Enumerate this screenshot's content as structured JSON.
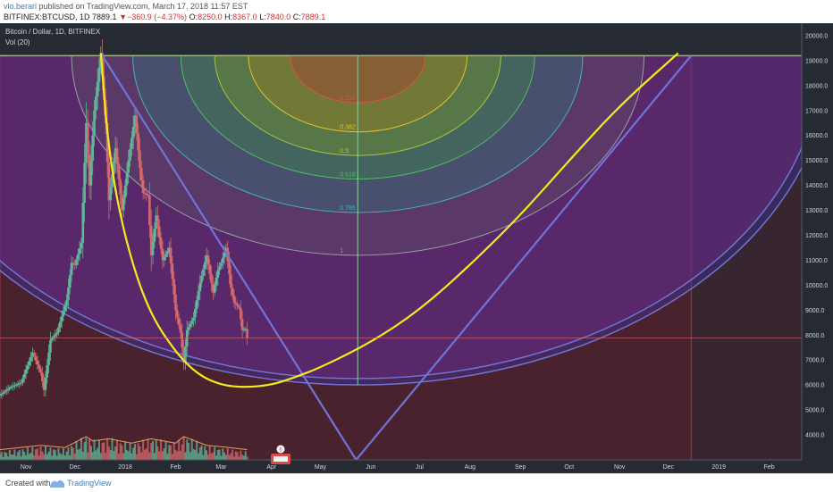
{
  "header": {
    "author": "vlo.berari",
    "published": "published on TradingView.com, March 17, 2018 11:57 EST",
    "symbol": "BITFINEX:BTCUSD, 1D",
    "last": "7889.1",
    "change": "−360.9 (−4.37%)",
    "o_label": "O:",
    "o_value": "8250.0",
    "h_label": "H:",
    "h_value": "8367.0",
    "l_label": "L:",
    "l_value": "7840.0",
    "c_label": "C:",
    "c_value": "7889.1"
  },
  "legend": {
    "title": "Bitcoin / Dollar, 1D, BITFINEX",
    "vol": "Vol (20)"
  },
  "footer": {
    "created": "Created with",
    "brand": "TradingView"
  },
  "colors": {
    "background": "#2a1e28",
    "axis_text": "#cfd3dc",
    "up": "#5fb89a",
    "down": "#d46a6a",
    "trend": "#6f74d8",
    "cup": "#f2ec1a",
    "fib_fill": "#6a2878"
  },
  "chart_data": [
    {
      "type": "candlestick",
      "title": "Bitcoin / Dollar, 1D, BITFINEX",
      "y_axis": {
        "side": "right",
        "range": [
          3000,
          20500
        ],
        "ticks": [
          4000,
          5000,
          6000,
          7000,
          8000,
          9000,
          10000,
          11000,
          12000,
          13000,
          14000,
          15000,
          16000,
          17000,
          18000,
          19000,
          20000
        ],
        "tick_labels": [
          "4000.0",
          "5000.0",
          "6000.0",
          "7000.0",
          "8000.0",
          "9000.0",
          "10000.0",
          "11000.0",
          "12000.0",
          "13000.0",
          "14000.0",
          "15000.0",
          "16000.0",
          "17000.0",
          "18000.0",
          "19000.0",
          "20000.0"
        ]
      },
      "x_axis": {
        "range": [
          "2017-10-16",
          "2019-02-21"
        ],
        "ticks": [
          "2017-11-01",
          "2017-12-01",
          "2018-01-01",
          "2018-02-01",
          "2018-03-01",
          "2018-04-01",
          "2018-05-01",
          "2018-06-01",
          "2018-07-01",
          "2018-08-01",
          "2018-09-01",
          "2018-10-01",
          "2018-11-01",
          "2018-12-01",
          "2019-01-01",
          "2019-02-01"
        ],
        "tick_labels": [
          "Nov",
          "Dec",
          "2018",
          "Feb",
          "Mar",
          "Apr",
          "May",
          "Jun",
          "Jul",
          "Aug",
          "Sep",
          "Oct",
          "Nov",
          "Dec",
          "2019",
          "Feb"
        ]
      },
      "grid": false,
      "last_price": 7889.1,
      "price_path": [
        [
          "2017-10-16",
          5600
        ],
        [
          "2017-10-22",
          5900
        ],
        [
          "2017-10-29",
          6100
        ],
        [
          "2017-11-05",
          7300
        ],
        [
          "2017-11-10",
          6500
        ],
        [
          "2017-11-12",
          5800
        ],
        [
          "2017-11-16",
          7800
        ],
        [
          "2017-11-20",
          8100
        ],
        [
          "2017-11-26",
          9400
        ],
        [
          "2017-11-29",
          10900
        ],
        [
          "2017-12-01",
          10800
        ],
        [
          "2017-12-05",
          11700
        ],
        [
          "2017-12-08",
          16500
        ],
        [
          "2017-12-10",
          14000
        ],
        [
          "2017-12-13",
          17000
        ],
        [
          "2017-12-17",
          19300
        ],
        [
          "2017-12-20",
          16500
        ],
        [
          "2017-12-22",
          13400
        ],
        [
          "2017-12-26",
          15500
        ],
        [
          "2017-12-30",
          13000
        ],
        [
          "2018-01-03",
          15000
        ],
        [
          "2018-01-07",
          16800
        ],
        [
          "2018-01-10",
          14700
        ],
        [
          "2018-01-12",
          13700
        ],
        [
          "2018-01-15",
          13600
        ],
        [
          "2018-01-17",
          11200
        ],
        [
          "2018-01-20",
          12800
        ],
        [
          "2018-01-24",
          11000
        ],
        [
          "2018-01-28",
          11500
        ],
        [
          "2018-02-01",
          9000
        ],
        [
          "2018-02-04",
          8100
        ],
        [
          "2018-02-06",
          6900
        ],
        [
          "2018-02-08",
          8200
        ],
        [
          "2018-02-12",
          8700
        ],
        [
          "2018-02-16",
          10100
        ],
        [
          "2018-02-20",
          11200
        ],
        [
          "2018-02-24",
          9700
        ],
        [
          "2018-02-27",
          10600
        ],
        [
          "2018-03-01",
          10900
        ],
        [
          "2018-03-04",
          11500
        ],
        [
          "2018-03-07",
          9900
        ],
        [
          "2018-03-09",
          9300
        ],
        [
          "2018-03-12",
          9100
        ],
        [
          "2018-03-14",
          8200
        ],
        [
          "2018-03-16",
          8250
        ],
        [
          "2018-03-17",
          7889
        ]
      ],
      "volume": {
        "name": "Vol (20)",
        "range": [
          0,
          20
        ],
        "path": [
          [
            "2017-10-16",
            3
          ],
          [
            "2017-11-10",
            5
          ],
          [
            "2017-11-25",
            4
          ],
          [
            "2017-12-08",
            9
          ],
          [
            "2017-12-12",
            7
          ],
          [
            "2017-12-22",
            8
          ],
          [
            "2018-01-05",
            6
          ],
          [
            "2018-01-17",
            8
          ],
          [
            "2018-02-01",
            6
          ],
          [
            "2018-02-06",
            9
          ],
          [
            "2018-02-20",
            5
          ],
          [
            "2018-03-06",
            4
          ],
          [
            "2018-03-17",
            3
          ]
        ]
      },
      "trend_lines": [
        {
          "from": [
            "2017-12-17",
            19300
          ],
          "to": [
            "2018-05-23",
            3000
          ]
        },
        {
          "from": [
            "2018-05-23",
            3000
          ],
          "to": [
            "2018-12-15",
            19200
          ]
        }
      ],
      "cup_curve": {
        "points": [
          [
            "2017-12-17",
            19300
          ],
          [
            "2017-12-22",
            15200
          ],
          [
            "2018-01-01",
            11800
          ],
          [
            "2018-01-15",
            9000
          ],
          [
            "2018-02-01",
            7300
          ],
          [
            "2018-02-15",
            6400
          ],
          [
            "2018-03-01",
            6000
          ],
          [
            "2018-03-15",
            5900
          ],
          [
            "2018-04-01",
            6000
          ],
          [
            "2018-04-15",
            6300
          ],
          [
            "2018-05-01",
            6700
          ],
          [
            "2018-06-01",
            7700
          ],
          [
            "2018-07-01",
            9000
          ],
          [
            "2018-08-01",
            10800
          ],
          [
            "2018-09-01",
            12800
          ],
          [
            "2018-10-01",
            15000
          ],
          [
            "2018-11-01",
            17200
          ],
          [
            "2018-12-07",
            19300
          ]
        ]
      },
      "fib_arcs": {
        "center": [
          "2018-05-24",
          19200
        ],
        "levels": [
          "0.236",
          "0.382",
          "0.5",
          "0.618",
          "0.786",
          "1"
        ],
        "level_values": [
          0.236,
          0.382,
          0.5,
          0.618,
          0.786,
          1
        ],
        "extension_level_values": [
          1.618,
          1.65
        ],
        "radius_x_days": 176,
        "radius_y_price": 8000
      },
      "rectangles": [
        {
          "from": [
            "2017-10-16",
            19200
          ],
          "to": [
            "2018-12-15",
            3000
          ]
        }
      ]
    }
  ]
}
